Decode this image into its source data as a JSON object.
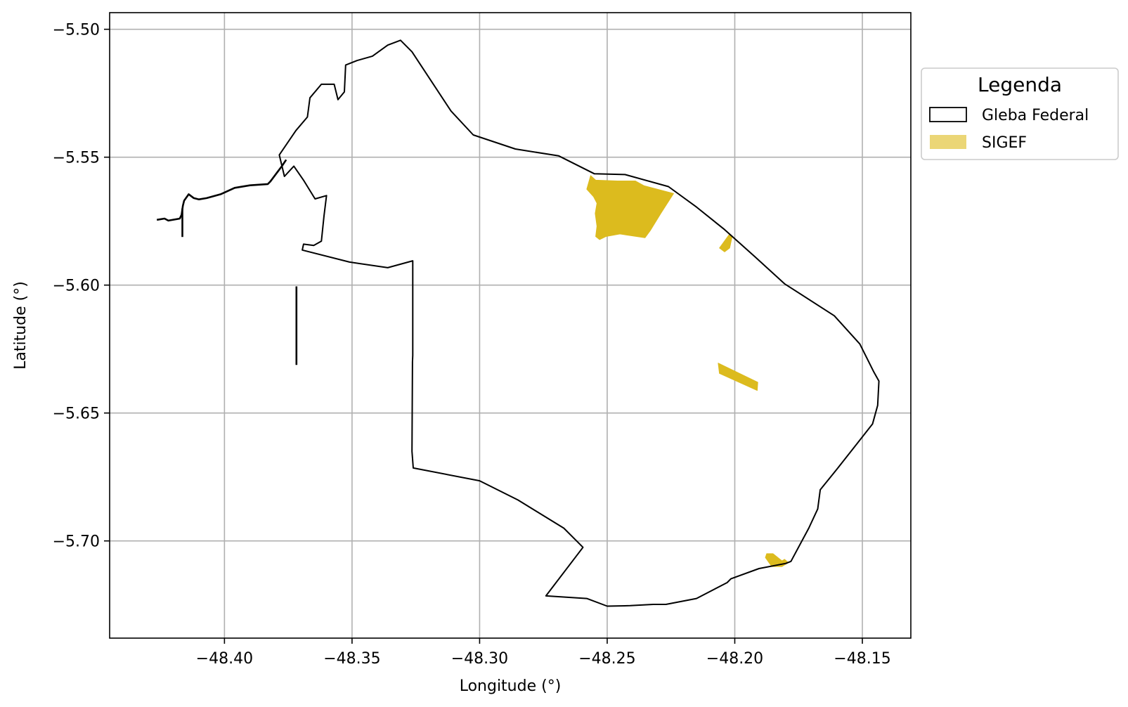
{
  "chart_data": {
    "type": "map",
    "title": "",
    "xlabel": "Longitude (°)",
    "ylabel": "Latitude (°)",
    "xlim": [
      -48.445,
      -48.131
    ],
    "ylim": [
      -5.738,
      -5.4935
    ],
    "xticks": [
      -48.4,
      -48.35,
      -48.3,
      -48.25,
      -48.2,
      -48.15
    ],
    "xtick_labels": [
      "−48.40",
      "−48.35",
      "−48.30",
      "−48.25",
      "−48.20",
      "−48.15"
    ],
    "yticks": [
      -5.5,
      -5.55,
      -5.6,
      -5.65,
      -5.7
    ],
    "ytick_labels": [
      "−5.50",
      "−5.55",
      "−5.60",
      "−5.65",
      "−5.70"
    ],
    "grid": true,
    "legend": {
      "title": "Legenda",
      "placement": "outside-right",
      "entries": [
        {
          "label": "Gleba Federal",
          "style": "outline",
          "color": "#000000"
        },
        {
          "label": "SIGEF",
          "style": "fill",
          "color": "#ebd676"
        }
      ]
    },
    "layers": [
      {
        "name": "Gleba Federal",
        "color": "#000000",
        "rings": [
          [
            [
              -48.3785,
              -5.5491
            ],
            [
              -48.372,
              -5.5396
            ],
            [
              -48.3675,
              -5.5343
            ],
            [
              -48.3665,
              -5.5268
            ],
            [
              -48.362,
              -5.5215
            ],
            [
              -48.357,
              -5.5215
            ],
            [
              -48.3555,
              -5.5275
            ],
            [
              -48.353,
              -5.5245
            ],
            [
              -48.3525,
              -5.514
            ],
            [
              -48.348,
              -5.5122
            ],
            [
              -48.342,
              -5.5105
            ],
            [
              -48.336,
              -5.5062
            ],
            [
              -48.331,
              -5.5043
            ],
            [
              -48.3265,
              -5.5088
            ],
            [
              -48.3112,
              -5.532
            ],
            [
              -48.3025,
              -5.5413
            ],
            [
              -48.286,
              -5.5468
            ],
            [
              -48.269,
              -5.5495
            ],
            [
              -48.255,
              -5.5565
            ],
            [
              -48.243,
              -5.5568
            ],
            [
              -48.226,
              -5.5615
            ],
            [
              -48.215,
              -5.5695
            ],
            [
              -48.204,
              -5.5783
            ],
            [
              -48.192,
              -5.589
            ],
            [
              -48.1805,
              -5.5995
            ],
            [
              -48.161,
              -5.612
            ],
            [
              -48.151,
              -5.623
            ],
            [
              -48.1455,
              -5.634
            ],
            [
              -48.1435,
              -5.6375
            ],
            [
              -48.144,
              -5.647
            ],
            [
              -48.146,
              -5.6543
            ],
            [
              -48.16,
              -5.672
            ],
            [
              -48.1665,
              -5.68
            ],
            [
              -48.1675,
              -5.6875
            ],
            [
              -48.171,
              -5.695
            ],
            [
              -48.178,
              -5.708
            ],
            [
              -48.18,
              -5.7088
            ],
            [
              -48.1905,
              -5.7108
            ],
            [
              -48.2015,
              -5.7148
            ],
            [
              -48.203,
              -5.7163
            ],
            [
              -48.215,
              -5.7225
            ],
            [
              -48.227,
              -5.7248
            ],
            [
              -48.232,
              -5.7248
            ],
            [
              -48.241,
              -5.7253
            ],
            [
              -48.25,
              -5.7255
            ],
            [
              -48.258,
              -5.7225
            ],
            [
              -48.274,
              -5.7215
            ],
            [
              -48.2595,
              -5.7025
            ],
            [
              -48.267,
              -5.695
            ],
            [
              -48.285,
              -5.684
            ],
            [
              -48.3,
              -5.6765
            ],
            [
              -48.326,
              -5.6715
            ],
            [
              -48.3265,
              -5.665
            ],
            [
              -48.3263,
              -5.63
            ],
            [
              -48.3262,
              -5.6275
            ],
            [
              -48.3262,
              -5.5905
            ],
            [
              -48.336,
              -5.5932
            ],
            [
              -48.351,
              -5.591
            ],
            [
              -48.3695,
              -5.5863
            ],
            [
              -48.369,
              -5.584
            ],
            [
              -48.365,
              -5.5845
            ],
            [
              -48.362,
              -5.5828
            ],
            [
              -48.361,
              -5.573
            ],
            [
              -48.36,
              -5.565
            ],
            [
              -48.3645,
              -5.5663
            ],
            [
              -48.369,
              -5.559
            ],
            [
              -48.3728,
              -5.5535
            ],
            [
              -48.3765,
              -5.5575
            ],
            [
              -48.3785,
              -5.5491
            ]
          ]
        ],
        "lines": [
          [
            [
              -48.4265,
              -5.5745
            ],
            [
              -48.4235,
              -5.574
            ],
            [
              -48.422,
              -5.5748
            ],
            [
              -48.4175,
              -5.574
            ],
            [
              -48.4168,
              -5.5725
            ],
            [
              -48.4163,
              -5.569
            ],
            [
              -48.4158,
              -5.567
            ],
            [
              -48.414,
              -5.5645
            ],
            [
              -48.412,
              -5.566
            ],
            [
              -48.41,
              -5.5665
            ],
            [
              -48.407,
              -5.566
            ],
            [
              -48.4015,
              -5.5645
            ],
            [
              -48.396,
              -5.562
            ],
            [
              -48.39,
              -5.561
            ],
            [
              -48.383,
              -5.5605
            ],
            [
              -48.382,
              -5.5595
            ],
            [
              -48.379,
              -5.5555
            ],
            [
              -48.3775,
              -5.5535
            ],
            [
              -48.3758,
              -5.551
            ]
          ],
          [
            [
              -48.4165,
              -5.57
            ],
            [
              -48.4165,
              -5.5812
            ]
          ],
          [
            [
              -48.3718,
              -5.6005
            ],
            [
              -48.3718,
              -5.6312
            ]
          ]
        ]
      },
      {
        "name": "SIGEF",
        "color": "#dcbb1e",
        "rings": [
          [
            [
              -48.2565,
              -5.5572
            ],
            [
              -48.2545,
              -5.559
            ],
            [
              -48.246,
              -5.5593
            ],
            [
              -48.239,
              -5.5593
            ],
            [
              -48.2355,
              -5.5612
            ],
            [
              -48.224,
              -5.5642
            ],
            [
              -48.229,
              -5.572
            ],
            [
              -48.233,
              -5.5785
            ],
            [
              -48.2352,
              -5.5815
            ],
            [
              -48.245,
              -5.58
            ],
            [
              -48.2505,
              -5.581
            ],
            [
              -48.253,
              -5.5822
            ],
            [
              -48.2545,
              -5.581
            ],
            [
              -48.254,
              -5.577
            ],
            [
              -48.2547,
              -5.572
            ],
            [
              -48.254,
              -5.568
            ],
            [
              -48.2553,
              -5.5655
            ],
            [
              -48.258,
              -5.5625
            ]
          ],
          [
            [
              -48.206,
              -5.5855
            ],
            [
              -48.202,
              -5.58
            ],
            [
              -48.201,
              -5.5808
            ],
            [
              -48.202,
              -5.5855
            ],
            [
              -48.204,
              -5.587
            ]
          ],
          [
            [
              -48.2065,
              -5.6305
            ],
            [
              -48.191,
              -5.638
            ],
            [
              -48.1912,
              -5.6412
            ],
            [
              -48.206,
              -5.6345
            ]
          ],
          [
            [
              -48.1875,
              -5.705
            ],
            [
              -48.185,
              -5.705
            ],
            [
              -48.1815,
              -5.7078
            ],
            [
              -48.1805,
              -5.7072
            ],
            [
              -48.179,
              -5.7085
            ],
            [
              -48.1815,
              -5.71
            ],
            [
              -48.1855,
              -5.71
            ],
            [
              -48.188,
              -5.7065
            ]
          ]
        ]
      }
    ]
  }
}
